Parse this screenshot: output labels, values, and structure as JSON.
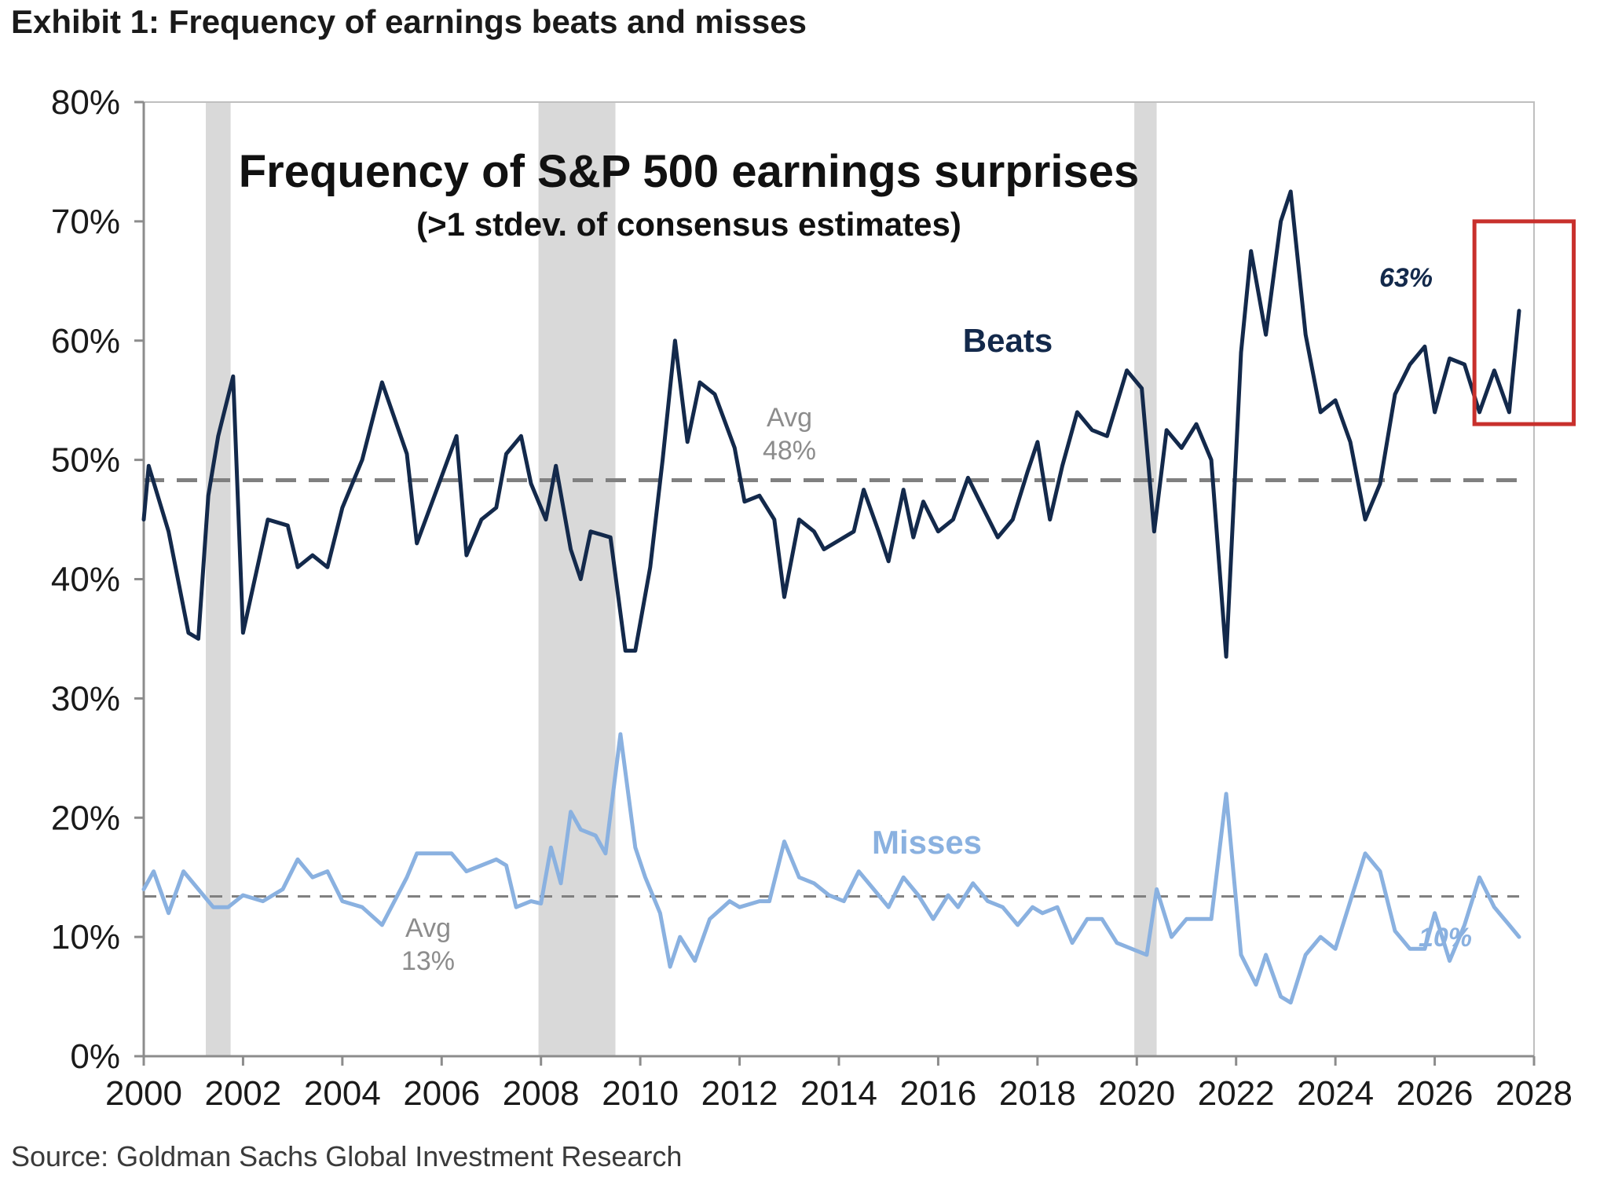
{
  "exhibit_title": "Exhibit 1: Frequency of earnings beats and misses",
  "source": "Source: Goldman Sachs Global Investment Research",
  "colors": {
    "beats": "#13294b",
    "misses": "#8ab1e0",
    "average_line": "#808080",
    "recession_shading": "#d9d9d9",
    "highlight_box": "#c8302c",
    "axis": "#bfbfbf"
  },
  "chart_data": {
    "type": "line",
    "title": "Frequency of S&P 500 earnings surprises",
    "subtitle": "(>1 stdev. of consensus estimates)",
    "xlabel": "",
    "ylabel": "",
    "xlim": [
      2000,
      2028
    ],
    "ylim": [
      0,
      80
    ],
    "x_ticks": [
      "2000",
      "2002",
      "2004",
      "2006",
      "2008",
      "2010",
      "2012",
      "2014",
      "2016",
      "2018",
      "2020",
      "2022",
      "2024",
      "2026",
      "2028"
    ],
    "y_ticks": [
      "0%",
      "10%",
      "20%",
      "30%",
      "40%",
      "50%",
      "60%",
      "70%",
      "80%"
    ],
    "grid": false,
    "legend": "none",
    "recessions": [
      {
        "start": 2001.25,
        "end": 2001.75
      },
      {
        "start": 2007.95,
        "end": 2009.5
      },
      {
        "start": 2019.95,
        "end": 2020.4
      }
    ],
    "averages": [
      {
        "series": "Beats",
        "value": 48.3,
        "label_line1": "Avg",
        "label_line2": "48%"
      },
      {
        "series": "Misses",
        "value": 13.4,
        "label_line1": "Avg",
        "label_line2": "13%"
      }
    ],
    "series": [
      {
        "name": "Beats",
        "end_label": "63%",
        "points": [
          [
            2000.0,
            45.0
          ],
          [
            2000.1,
            49.5
          ],
          [
            2000.5,
            44.0
          ],
          [
            2000.9,
            35.5
          ],
          [
            2001.1,
            35.0
          ],
          [
            2001.3,
            47.0
          ],
          [
            2001.5,
            52.0
          ],
          [
            2001.8,
            57.0
          ],
          [
            2002.0,
            35.5
          ],
          [
            2002.5,
            45.0
          ],
          [
            2002.9,
            44.5
          ],
          [
            2003.1,
            41.0
          ],
          [
            2003.4,
            42.0
          ],
          [
            2003.7,
            41.0
          ],
          [
            2004.0,
            46.0
          ],
          [
            2004.4,
            50.0
          ],
          [
            2004.8,
            56.5
          ],
          [
            2005.3,
            50.5
          ],
          [
            2005.5,
            43.0
          ],
          [
            2005.9,
            47.5
          ],
          [
            2006.3,
            52.0
          ],
          [
            2006.5,
            42.0
          ],
          [
            2006.8,
            45.0
          ],
          [
            2007.1,
            46.0
          ],
          [
            2007.3,
            50.5
          ],
          [
            2007.6,
            52.0
          ],
          [
            2007.8,
            48.0
          ],
          [
            2008.1,
            45.0
          ],
          [
            2008.3,
            49.5
          ],
          [
            2008.6,
            42.5
          ],
          [
            2008.8,
            40.0
          ],
          [
            2009.0,
            44.0
          ],
          [
            2009.4,
            43.5
          ],
          [
            2009.7,
            34.0
          ],
          [
            2009.9,
            34.0
          ],
          [
            2010.2,
            41.0
          ],
          [
            2010.45,
            50.0
          ],
          [
            2010.7,
            60.0
          ],
          [
            2010.95,
            51.5
          ],
          [
            2011.2,
            56.5
          ],
          [
            2011.5,
            55.5
          ],
          [
            2011.9,
            51.0
          ],
          [
            2012.1,
            46.5
          ],
          [
            2012.4,
            47.0
          ],
          [
            2012.7,
            45.0
          ],
          [
            2012.9,
            38.5
          ],
          [
            2013.2,
            45.0
          ],
          [
            2013.5,
            44.0
          ],
          [
            2013.7,
            42.5
          ],
          [
            2014.3,
            44.0
          ],
          [
            2014.5,
            47.5
          ],
          [
            2014.8,
            44.0
          ],
          [
            2015.0,
            41.5
          ],
          [
            2015.3,
            47.5
          ],
          [
            2015.5,
            43.5
          ],
          [
            2015.7,
            46.5
          ],
          [
            2016.0,
            44.0
          ],
          [
            2016.3,
            45.0
          ],
          [
            2016.6,
            48.5
          ],
          [
            2016.9,
            46.0
          ],
          [
            2017.2,
            43.5
          ],
          [
            2017.5,
            45.0
          ],
          [
            2017.8,
            49.0
          ],
          [
            2018.0,
            51.5
          ],
          [
            2018.25,
            45.0
          ],
          [
            2018.5,
            49.5
          ],
          [
            2018.8,
            54.0
          ],
          [
            2019.1,
            52.5
          ],
          [
            2019.4,
            52.0
          ],
          [
            2019.8,
            57.5
          ],
          [
            2020.1,
            56.0
          ],
          [
            2020.35,
            44.0
          ],
          [
            2020.6,
            52.5
          ],
          [
            2020.9,
            51.0
          ],
          [
            2021.2,
            53.0
          ],
          [
            2021.5,
            50.0
          ],
          [
            2021.8,
            33.5
          ],
          [
            2022.1,
            59.0
          ],
          [
            2022.3,
            67.5
          ],
          [
            2022.6,
            60.5
          ],
          [
            2022.9,
            70.0
          ],
          [
            2023.1,
            72.5
          ],
          [
            2023.4,
            60.5
          ],
          [
            2023.7,
            54.0
          ],
          [
            2024.0,
            55.0
          ],
          [
            2024.3,
            51.5
          ],
          [
            2024.6,
            45.0
          ],
          [
            2024.9,
            48.0
          ],
          [
            2025.2,
            55.5
          ],
          [
            2025.5,
            58.0
          ],
          [
            2025.8,
            59.5
          ],
          [
            2026.0,
            54.0
          ],
          [
            2026.3,
            58.5
          ],
          [
            2026.6,
            58.0
          ],
          [
            2026.9,
            54.0
          ],
          [
            2027.2,
            57.5
          ],
          [
            2027.5,
            54.0
          ],
          [
            2027.7,
            62.5
          ]
        ]
      },
      {
        "name": "Misses",
        "end_label": "10%",
        "points": [
          [
            2000.0,
            14.0
          ],
          [
            2000.2,
            15.5
          ],
          [
            2000.5,
            12.0
          ],
          [
            2000.8,
            15.5
          ],
          [
            2001.1,
            14.0
          ],
          [
            2001.4,
            12.5
          ],
          [
            2001.7,
            12.5
          ],
          [
            2002.0,
            13.5
          ],
          [
            2002.4,
            13.0
          ],
          [
            2002.8,
            14.0
          ],
          [
            2003.1,
            16.5
          ],
          [
            2003.4,
            15.0
          ],
          [
            2003.7,
            15.5
          ],
          [
            2004.0,
            13.0
          ],
          [
            2004.4,
            12.5
          ],
          [
            2004.8,
            11.0
          ],
          [
            2005.3,
            15.0
          ],
          [
            2005.5,
            17.0
          ],
          [
            2005.9,
            17.0
          ],
          [
            2006.2,
            17.0
          ],
          [
            2006.5,
            15.5
          ],
          [
            2006.8,
            16.0
          ],
          [
            2007.1,
            16.5
          ],
          [
            2007.3,
            16.0
          ],
          [
            2007.5,
            12.5
          ],
          [
            2007.8,
            13.0
          ],
          [
            2008.0,
            12.8
          ],
          [
            2008.2,
            17.5
          ],
          [
            2008.4,
            14.5
          ],
          [
            2008.6,
            20.5
          ],
          [
            2008.8,
            19.0
          ],
          [
            2009.1,
            18.5
          ],
          [
            2009.3,
            17.0
          ],
          [
            2009.6,
            27.0
          ],
          [
            2009.9,
            17.5
          ],
          [
            2010.1,
            15.0
          ],
          [
            2010.4,
            12.0
          ],
          [
            2010.6,
            7.5
          ],
          [
            2010.8,
            10.0
          ],
          [
            2011.1,
            8.0
          ],
          [
            2011.4,
            11.5
          ],
          [
            2011.8,
            13.0
          ],
          [
            2012.0,
            12.5
          ],
          [
            2012.4,
            13.0
          ],
          [
            2012.6,
            13.0
          ],
          [
            2012.9,
            18.0
          ],
          [
            2013.2,
            15.0
          ],
          [
            2013.5,
            14.5
          ],
          [
            2013.8,
            13.5
          ],
          [
            2014.1,
            13.0
          ],
          [
            2014.4,
            15.5
          ],
          [
            2014.7,
            14.0
          ],
          [
            2015.0,
            12.5
          ],
          [
            2015.3,
            15.0
          ],
          [
            2015.6,
            13.5
          ],
          [
            2015.9,
            11.5
          ],
          [
            2016.2,
            13.5
          ],
          [
            2016.4,
            12.5
          ],
          [
            2016.7,
            14.5
          ],
          [
            2017.0,
            13.0
          ],
          [
            2017.3,
            12.5
          ],
          [
            2017.6,
            11.0
          ],
          [
            2017.9,
            12.5
          ],
          [
            2018.1,
            12.0
          ],
          [
            2018.4,
            12.5
          ],
          [
            2018.7,
            9.5
          ],
          [
            2019.0,
            11.5
          ],
          [
            2019.3,
            11.5
          ],
          [
            2019.6,
            9.5
          ],
          [
            2019.9,
            9.0
          ],
          [
            2020.2,
            8.5
          ],
          [
            2020.4,
            14.0
          ],
          [
            2020.7,
            10.0
          ],
          [
            2021.0,
            11.5
          ],
          [
            2021.3,
            11.5
          ],
          [
            2021.5,
            11.5
          ],
          [
            2021.8,
            22.0
          ],
          [
            2022.1,
            8.5
          ],
          [
            2022.4,
            6.0
          ],
          [
            2022.6,
            8.5
          ],
          [
            2022.9,
            5.0
          ],
          [
            2023.1,
            4.5
          ],
          [
            2023.4,
            8.5
          ],
          [
            2023.7,
            10.0
          ],
          [
            2024.0,
            9.0
          ],
          [
            2024.3,
            13.0
          ],
          [
            2024.6,
            17.0
          ],
          [
            2024.9,
            15.5
          ],
          [
            2025.2,
            10.5
          ],
          [
            2025.5,
            9.0
          ],
          [
            2025.8,
            9.0
          ],
          [
            2026.0,
            12.0
          ],
          [
            2026.3,
            8.0
          ],
          [
            2026.6,
            11.0
          ],
          [
            2026.9,
            15.0
          ],
          [
            2027.2,
            12.5
          ],
          [
            2027.5,
            11.0
          ],
          [
            2027.7,
            10.0
          ]
        ]
      }
    ],
    "highlight": {
      "x_start": 2026.8,
      "x_end": 2028.8,
      "y_start": 53,
      "y_end": 70
    }
  }
}
